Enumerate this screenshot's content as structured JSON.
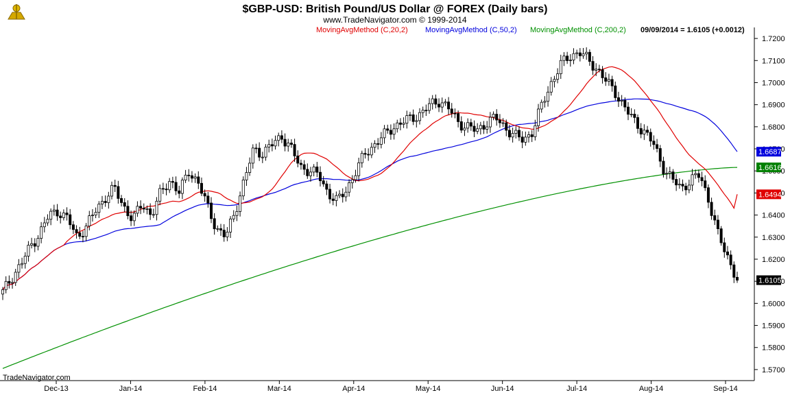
{
  "header": {
    "title": "$GBP-USD:  British Pound/US Dollar @ FOREX  (Daily bars)",
    "copyright": "www.TradeNavigator.com © 1999-2014",
    "legend": [
      {
        "text": "MovingAvgMethod (C,20,2)",
        "color": "#e00000"
      },
      {
        "text": "MovingAvgMethod (C,50,2)",
        "color": "#0000dd"
      },
      {
        "text": "MovingAvgMethod (C,200,2)",
        "color": "#009000"
      }
    ],
    "quote": "09/09/2014 = 1.6105 (+0.0012)"
  },
  "watermark": "TradeNavigator.com",
  "chart_data": {
    "type": "candlestick",
    "ylim": [
      1.565,
      1.725
    ],
    "y_ticks": [
      "1.7200",
      "1.7100",
      "1.7000",
      "1.6900",
      "1.6800",
      "1.6700",
      "1.6600",
      "1.6500",
      "1.6400",
      "1.6300",
      "1.6200",
      "1.6100",
      "1.6000",
      "1.5900",
      "1.5800",
      "1.5700"
    ],
    "x_ticks": [
      "Dec-13",
      "Jan-14",
      "Feb-14",
      "Mar-14",
      "Apr-14",
      "May-14",
      "Jun-14",
      "Jul-14",
      "Aug-14",
      "Sep-14"
    ],
    "closes_sampled": [
      1.605,
      1.612,
      1.618,
      1.626,
      1.632,
      1.64,
      1.642,
      1.638,
      1.63,
      1.635,
      1.642,
      1.648,
      1.652,
      1.644,
      1.638,
      1.645,
      1.64,
      1.65,
      1.656,
      1.65,
      1.66,
      1.655,
      1.644,
      1.634,
      1.63,
      1.642,
      1.656,
      1.67,
      1.668,
      1.672,
      1.676,
      1.67,
      1.662,
      1.66,
      1.658,
      1.65,
      1.646,
      1.652,
      1.66,
      1.668,
      1.672,
      1.676,
      1.68,
      1.682,
      1.684,
      1.686,
      1.69,
      1.692,
      1.688,
      1.682,
      1.68,
      1.678,
      1.682,
      1.684,
      1.68,
      1.676,
      1.674,
      1.678,
      1.69,
      1.7,
      1.708,
      1.712,
      1.714,
      1.71,
      1.706,
      1.7,
      1.695,
      1.688,
      1.682,
      1.678,
      1.672,
      1.662,
      1.656,
      1.652,
      1.656,
      1.658,
      1.646,
      1.63,
      1.621,
      1.6105
    ],
    "series": [
      {
        "name": "MovingAvgMethod (C,20,2)",
        "color": "#e00000",
        "last": 1.6494
      },
      {
        "name": "MovingAvgMethod (C,50,2)",
        "color": "#0000dd",
        "last": 1.6687
      },
      {
        "name": "MovingAvgMethod (C,200,2)",
        "color": "#009000",
        "last": 1.6616
      }
    ],
    "last_price": {
      "value": 1.6105,
      "label": "1.6105"
    },
    "badges": [
      {
        "label": "1.6687",
        "color": "#0000dd",
        "value": 1.6687
      },
      {
        "label": "1.6616",
        "color": "#008000",
        "value": 1.6616
      },
      {
        "label": "1.6494",
        "color": "#e00000",
        "value": 1.6494
      },
      {
        "label": "1.6105",
        "color": "#000000",
        "value": 1.6105
      }
    ]
  }
}
